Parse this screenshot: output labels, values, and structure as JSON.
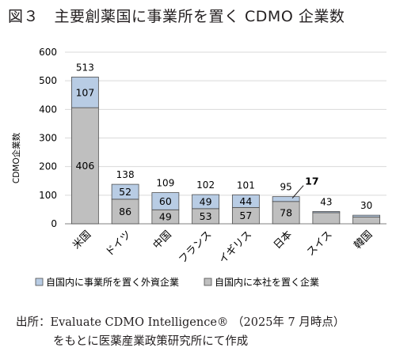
{
  "title": "図３　主要創薬国に事業所を置く CDMO 企業数",
  "chart_data": {
    "type": "bar",
    "stacked": true,
    "title": "",
    "xlabel": "",
    "ylabel": "CDMO企業数",
    "ylim": [
      0,
      600
    ],
    "yticks": [
      "0",
      "100",
      "200",
      "300",
      "400",
      "500",
      "600"
    ],
    "grid": true,
    "legend_position": "bottom",
    "categories": [
      "米国",
      "ドイツ",
      "中国",
      "フランス",
      "イギリス",
      "日本",
      "スイス",
      "韓国"
    ],
    "series": [
      {
        "name": "自国内に本社を置く企業",
        "color": "#bfbfbf",
        "values": [
          406,
          86,
          49,
          53,
          57,
          78,
          39,
          24
        ],
        "labels": [
          "406",
          "86",
          "49",
          "53",
          "57",
          "78",
          "",
          ""
        ]
      },
      {
        "name": "自国内に事業所を置く外資企業",
        "color": "#b8cce4",
        "values": [
          107,
          52,
          60,
          49,
          44,
          17,
          4,
          6
        ],
        "labels": [
          "107",
          "52",
          "60",
          "49",
          "44",
          "",
          "",
          ""
        ]
      }
    ],
    "totals": [
      "513",
      "138",
      "109",
      "102",
      "101",
      "95",
      "43",
      "30"
    ],
    "annotations": [
      {
        "category": "日本",
        "text": "17"
      }
    ]
  },
  "source": {
    "line1": "出所：Evaluate CDMO Intelligence® （2025年 7 月時点）",
    "line2": "をもとに医薬産業政策研究所にて作成"
  }
}
